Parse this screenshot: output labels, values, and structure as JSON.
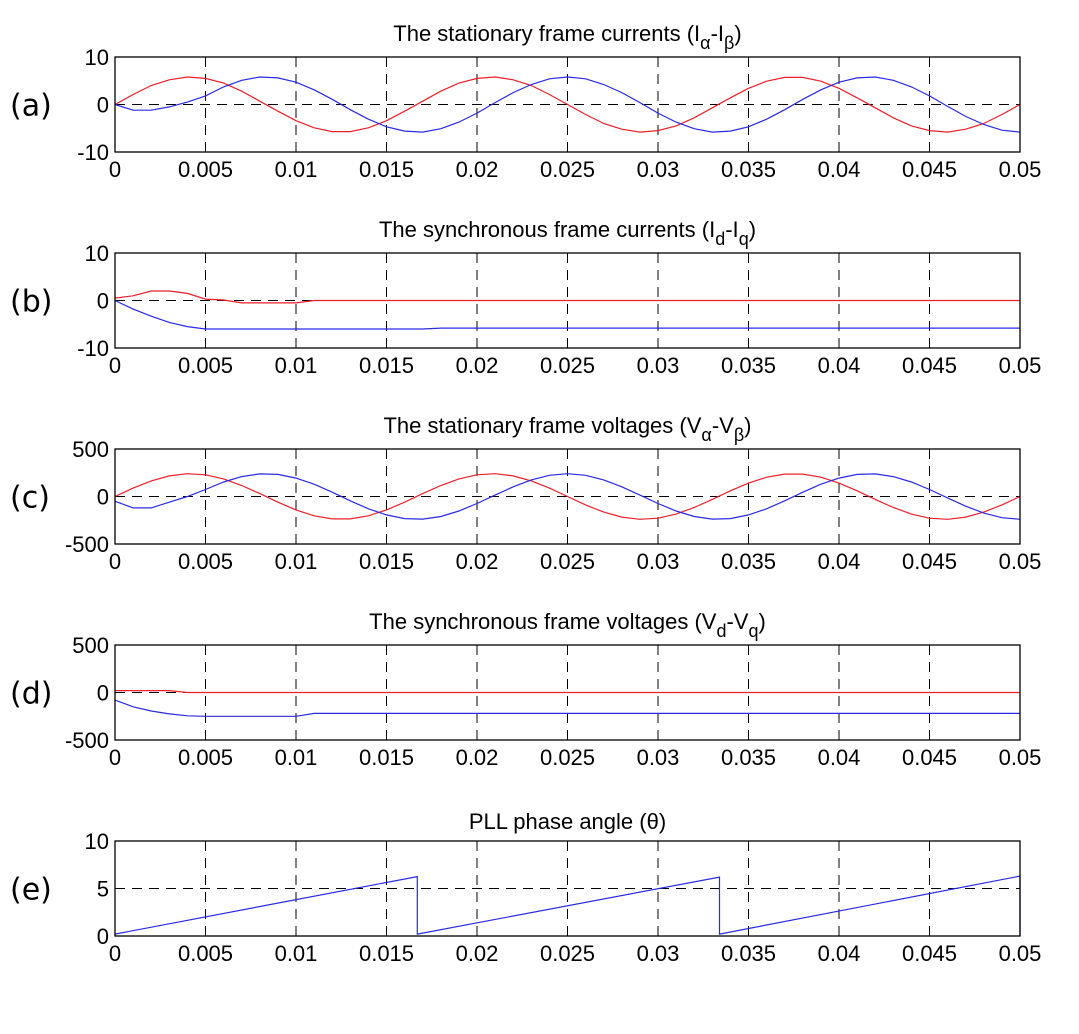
{
  "chart_data": [
    {
      "type": "line",
      "panel_label": "(a)",
      "title_parts": [
        {
          "t": "The stationary frame currents (I"
        },
        {
          "s": "α"
        },
        {
          "t": "-I"
        },
        {
          "s": "β"
        },
        {
          "t": ")"
        }
      ],
      "xlim": [
        0,
        0.05
      ],
      "ylim": [
        -10,
        10
      ],
      "xticks": [
        "0",
        "0.005",
        "0.01",
        "0.015",
        "0.02",
        "0.025",
        "0.03",
        "0.035",
        "0.04",
        "0.045",
        "0.05"
      ],
      "yticks": [
        "-10",
        "0",
        "10"
      ],
      "grid": true,
      "series": [
        {
          "color": "#e8202a",
          "values": [
            0,
            2.1,
            4,
            5.2,
            5.8,
            5.5,
            4.5,
            2.8,
            0.7,
            -1.4,
            -3.4,
            -4.9,
            -5.7,
            -5.7,
            -4.9,
            -3.4,
            -1.4,
            0.7,
            2.8,
            4.5,
            5.5,
            5.8,
            5.2,
            4,
            2.1,
            0,
            -2.1,
            -4,
            -5.2,
            -5.8,
            -5.5,
            -4.5,
            -2.8,
            -0.7,
            1.4,
            3.4,
            4.9,
            5.7,
            5.7,
            4.9,
            3.4,
            1.4,
            -0.7,
            -2.8,
            -4.5,
            -5.5,
            -5.8,
            -5.2,
            -4,
            -2.1,
            0
          ]
        },
        {
          "color": "#2a2ae0",
          "values": [
            0,
            -1.2,
            -1.2,
            -0.5,
            0.5,
            1.8,
            3.7,
            5.1,
            5.8,
            5.6,
            4.7,
            3.1,
            1.1,
            -1.1,
            -3.1,
            -4.7,
            -5.6,
            -5.8,
            -5.1,
            -3.7,
            -1.8,
            0.4,
            2.5,
            4.2,
            5.4,
            5.8,
            5.4,
            4.2,
            2.5,
            0.4,
            -1.8,
            -3.7,
            -5.1,
            -5.8,
            -5.6,
            -4.7,
            -3.1,
            -1.1,
            1.1,
            3.1,
            4.7,
            5.6,
            5.8,
            5.1,
            3.7,
            1.8,
            -0.4,
            -2.5,
            -4.2,
            -5.4,
            -5.8
          ]
        }
      ]
    },
    {
      "type": "line",
      "panel_label": "(b)",
      "title_parts": [
        {
          "t": "The synchronous frame currents (I"
        },
        {
          "s": "d"
        },
        {
          "t": "-I"
        },
        {
          "s": "q"
        },
        {
          "t": ")"
        }
      ],
      "xlim": [
        0,
        0.05
      ],
      "ylim": [
        -10,
        10
      ],
      "xticks": [
        "0",
        "0.005",
        "0.01",
        "0.015",
        "0.02",
        "0.025",
        "0.03",
        "0.035",
        "0.04",
        "0.045",
        "0.05"
      ],
      "yticks": [
        "-10",
        "0",
        "10"
      ],
      "grid": true,
      "series": [
        {
          "color": "#e8202a",
          "values": [
            0.5,
            1,
            2,
            2,
            1.5,
            0.3,
            0.1,
            -0.5,
            -0.5,
            -0.5,
            -0.5,
            0,
            0,
            0,
            0,
            0,
            0,
            0,
            0,
            0,
            0,
            0,
            0,
            0,
            0,
            0,
            0,
            0,
            0,
            0,
            0,
            0,
            0,
            0,
            0,
            0,
            0,
            0,
            0,
            0,
            0,
            0,
            0,
            0,
            0,
            0,
            0,
            0,
            0,
            0,
            0
          ]
        },
        {
          "color": "#2a2ae0",
          "values": [
            0,
            -1.8,
            -3.3,
            -4.6,
            -5.5,
            -6,
            -6,
            -6,
            -6,
            -6,
            -6,
            -6,
            -6,
            -6,
            -6,
            -6,
            -6,
            -6,
            -5.8,
            -5.8,
            -5.8,
            -5.8,
            -5.8,
            -5.8,
            -5.8,
            -5.8,
            -5.8,
            -5.8,
            -5.8,
            -5.8,
            -5.8,
            -5.8,
            -5.8,
            -5.8,
            -5.8,
            -5.8,
            -5.8,
            -5.8,
            -5.8,
            -5.8,
            -5.8,
            -5.8,
            -5.8,
            -5.8,
            -5.8,
            -5.8,
            -5.8,
            -5.8,
            -5.8,
            -5.8,
            -5.8
          ]
        }
      ]
    },
    {
      "type": "line",
      "panel_label": "(c)",
      "title_parts": [
        {
          "t": "The stationary frame voltages (V"
        },
        {
          "s": "α"
        },
        {
          "t": "-V"
        },
        {
          "s": "β"
        },
        {
          "t": ")"
        }
      ],
      "xlim": [
        0,
        0.05
      ],
      "ylim": [
        -500,
        500
      ],
      "xticks": [
        "0",
        "0.005",
        "0.01",
        "0.015",
        "0.02",
        "0.025",
        "0.03",
        "0.035",
        "0.04",
        "0.045",
        "0.05"
      ],
      "yticks": [
        "-500",
        "0",
        "500"
      ],
      "grid": true,
      "series": [
        {
          "color": "#e8202a",
          "values": [
            0,
            88,
            164,
            217,
            240,
            228,
            185,
            116,
            30,
            -60,
            -141,
            -203,
            -236,
            -236,
            -203,
            -141,
            -60,
            30,
            116,
            185,
            228,
            240,
            217,
            164,
            88,
            0,
            -88,
            -164,
            -217,
            -240,
            -228,
            -185,
            -116,
            -30,
            60,
            141,
            203,
            236,
            236,
            203,
            141,
            60,
            -30,
            -116,
            -185,
            -228,
            -240,
            -217,
            -164,
            -88,
            0
          ]
        },
        {
          "color": "#2a2ae0",
          "values": [
            -50,
            -120,
            -120,
            -60,
            0,
            74,
            153,
            210,
            238,
            233,
            194,
            129,
            45,
            -45,
            -129,
            -194,
            -233,
            -238,
            -210,
            -153,
            -74,
            15,
            102,
            175,
            223,
            240,
            223,
            175,
            102,
            15,
            -74,
            -153,
            -210,
            -238,
            -233,
            -194,
            -129,
            -45,
            45,
            129,
            194,
            233,
            238,
            210,
            153,
            74,
            -15,
            -102,
            -175,
            -223,
            -240
          ]
        }
      ]
    },
    {
      "type": "line",
      "panel_label": "(d)",
      "title_parts": [
        {
          "t": "The synchronous frame voltages (V"
        },
        {
          "s": "d"
        },
        {
          "t": "-V"
        },
        {
          "s": "q"
        },
        {
          "t": ")"
        }
      ],
      "xlim": [
        0,
        0.05
      ],
      "ylim": [
        -500,
        500
      ],
      "xticks": [
        "0",
        "0.005",
        "0.01",
        "0.015",
        "0.02",
        "0.025",
        "0.03",
        "0.035",
        "0.04",
        "0.045",
        "0.05"
      ],
      "yticks": [
        "-500",
        "0",
        "500"
      ],
      "grid": true,
      "series": [
        {
          "color": "#e8202a",
          "values": [
            20,
            20,
            20,
            20,
            0,
            0,
            0,
            0,
            0,
            0,
            0,
            0,
            0,
            0,
            0,
            0,
            0,
            0,
            0,
            0,
            0,
            0,
            0,
            0,
            0,
            0,
            0,
            0,
            0,
            0,
            0,
            0,
            0,
            0,
            0,
            0,
            0,
            0,
            0,
            0,
            0,
            0,
            0,
            0,
            0,
            0,
            0,
            0,
            0,
            0,
            0
          ]
        },
        {
          "color": "#2a2ae0",
          "values": [
            -80,
            -150,
            -195,
            -225,
            -245,
            -250,
            -250,
            -250,
            -250,
            -250,
            -250,
            -220,
            -220,
            -220,
            -220,
            -220,
            -220,
            -220,
            -220,
            -220,
            -220,
            -220,
            -220,
            -220,
            -220,
            -220,
            -220,
            -220,
            -220,
            -220,
            -220,
            -220,
            -220,
            -220,
            -220,
            -220,
            -220,
            -220,
            -220,
            -220,
            -220,
            -220,
            -220,
            -220,
            -220,
            -220,
            -220,
            -220,
            -220,
            -220,
            -220
          ]
        }
      ]
    },
    {
      "type": "line",
      "panel_label": "(e)",
      "title_parts": [
        {
          "t": "PLL phase angle (θ)"
        }
      ],
      "xlim": [
        0,
        0.05
      ],
      "ylim": [
        0,
        10
      ],
      "xticks": [
        "0",
        "0.005",
        "0.01",
        "0.015",
        "0.02",
        "0.025",
        "0.03",
        "0.035",
        "0.04",
        "0.045",
        "0.05"
      ],
      "yticks": [
        "0",
        "5",
        "10"
      ],
      "grid": true,
      "series": [
        {
          "color": "#2a2ae0",
          "x": [
            0,
            0.0167,
            0.0167,
            0.0334,
            0.0334,
            0.05,
            0.05
          ],
          "values": [
            0.2,
            6.25,
            0.2,
            6.2,
            0.2,
            6.3,
            0
          ]
        }
      ]
    }
  ],
  "time": [
    0,
    0.001,
    0.002,
    0.003,
    0.004,
    0.005,
    0.006,
    0.007,
    0.008,
    0.009,
    0.01,
    0.011,
    0.012,
    0.013,
    0.014,
    0.015,
    0.016,
    0.017,
    0.018,
    0.019,
    0.02,
    0.021,
    0.022,
    0.023,
    0.024,
    0.025,
    0.026,
    0.027,
    0.028,
    0.029,
    0.03,
    0.031,
    0.032,
    0.033,
    0.034,
    0.035,
    0.036,
    0.037,
    0.038,
    0.039,
    0.04,
    0.041,
    0.042,
    0.043,
    0.044,
    0.045,
    0.046,
    0.047,
    0.048,
    0.049,
    0.05
  ]
}
